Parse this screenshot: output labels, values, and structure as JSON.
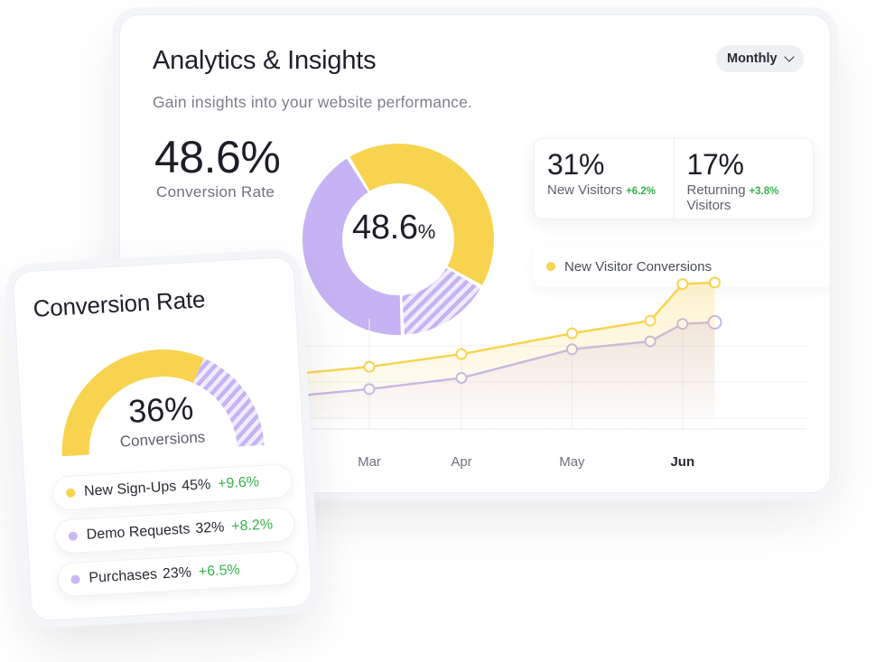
{
  "main": {
    "title": "Analytics & Insights",
    "subtitle": "Gain insights into your website performance.",
    "period": "Monthly",
    "headline_value": "48.6%",
    "headline_label": "Conversion Rate"
  },
  "stats": [
    {
      "value": "31%",
      "label": "New Visitors",
      "delta": "+6.2%"
    },
    {
      "value": "17%",
      "label_line1": "Returning",
      "label_line2": "Visitors",
      "delta": "+3.8%"
    }
  ],
  "side": {
    "title": "Conversion Rate",
    "gauge_value": "36%",
    "gauge_label": "Conversions",
    "rows": [
      {
        "label": "New Sign-Ups",
        "value": "45%",
        "delta": "+9.6%",
        "color": "#f8d34f"
      },
      {
        "label": "Demo Requests",
        "value": "32%",
        "delta": "+8.2%",
        "color": "#c9b8f2"
      },
      {
        "label": "Purchases",
        "value": "23%",
        "delta": "+6.5%",
        "color": "#c9b8f2"
      }
    ]
  },
  "colors": {
    "yellow": "#f8d34f",
    "purple": "#c5b3f3",
    "green": "#37b24d"
  },
  "chart_data": [
    {
      "type": "pie",
      "center_label_value": "48.6",
      "center_label_unit": "%",
      "slices": [
        {
          "value": 42,
          "color": "#f8d34f",
          "pattern": "solid"
        },
        {
          "value": 16,
          "color": "#c5b3f3",
          "pattern": "hatched"
        },
        {
          "value": 42,
          "color": "#c5b3f3",
          "pattern": "solid"
        }
      ]
    },
    {
      "type": "line",
      "legend": [
        "New Visitor Conversions"
      ],
      "legend_placement": "top-right",
      "categories": [
        "Mar",
        "Apr",
        "May",
        "Jun"
      ],
      "grid": true,
      "ylim": [
        0,
        100
      ],
      "series": [
        {
          "name": "New Visitor Conversions",
          "color": "#f8d34f",
          "x": [
            0.0,
            1.0,
            2.2,
            3.05,
            3.4,
            3.75
          ],
          "values": [
            38,
            46,
            59,
            67,
            90,
            91
          ]
        },
        {
          "color": "#c5b3f3",
          "x": [
            0.0,
            1.0,
            2.2,
            3.05,
            3.4,
            3.75
          ],
          "values": [
            24,
            31,
            49,
            54,
            65,
            66
          ]
        }
      ],
      "axis_label_emphasis": "Jun"
    },
    {
      "type": "pie",
      "shape": "half-donut gauge",
      "center_label_value": "36%",
      "center_label": "Conversions",
      "slices": [
        {
          "value": 65,
          "color": "#f8d34f",
          "pattern": "solid"
        },
        {
          "value": 35,
          "color": "#c5b3f3",
          "pattern": "hatched"
        }
      ]
    }
  ]
}
